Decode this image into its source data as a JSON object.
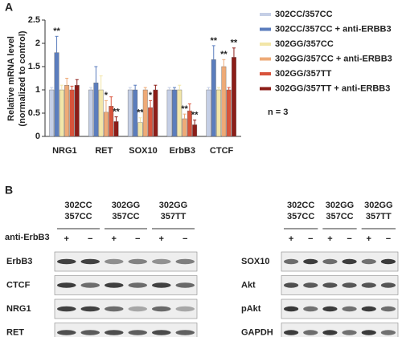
{
  "panel_a": "A",
  "panel_b": "B",
  "chart_data": {
    "type": "bar",
    "y_label": [
      "Relative mRNA level",
      "(normalized to control)"
    ],
    "categories": [
      "NRG1",
      "RET",
      "SOX10",
      "ErbB3",
      "CTCF"
    ],
    "ylim": [
      0,
      2.5
    ],
    "yticks": [
      0,
      0.5,
      1.0,
      1.5,
      2.0,
      2.5
    ],
    "series": [
      {
        "name": "302CC/357CC",
        "color": "#c5cfe6",
        "values": [
          1,
          1,
          1,
          1,
          1
        ],
        "errors": [
          0.05,
          0.05,
          0.05,
          0.05,
          0.05
        ],
        "significance": [
          null,
          null,
          null,
          null,
          null
        ]
      },
      {
        "name": "302CC/357CC + anti-ERBB3",
        "color": "#5b7dbd",
        "values": [
          1.8,
          1.15,
          1.0,
          1.0,
          1.65
        ],
        "errors": [
          0.35,
          0.35,
          0.1,
          0.05,
          0.3
        ],
        "significance": [
          "**",
          null,
          null,
          null,
          "**"
        ]
      },
      {
        "name": "302GG/357CC",
        "color": "#f2e6a8",
        "values": [
          1.0,
          1.0,
          0.3,
          1.0,
          1.0
        ],
        "errors": [
          0.1,
          0.3,
          0.1,
          0.1,
          0.05
        ],
        "significance": [
          null,
          null,
          "**",
          null,
          null
        ]
      },
      {
        "name": "302GG/357CC + anti-ERBB3",
        "color": "#eeaa77",
        "values": [
          1.1,
          0.52,
          1.0,
          0.38,
          1.5
        ],
        "errors": [
          0.15,
          0.25,
          0.05,
          0.1,
          0.15
        ],
        "significance": [
          null,
          "*",
          null,
          "**",
          "**"
        ]
      },
      {
        "name": "302GG/357TT",
        "color": "#d8533b",
        "values": [
          1.0,
          0.65,
          0.62,
          0.55,
          1.0
        ],
        "errors": [
          0.08,
          0.2,
          0.15,
          0.15,
          0.05
        ],
        "significance": [
          null,
          null,
          "*",
          null,
          null
        ]
      },
      {
        "name": "302GG/357TT + anti-ERBB3",
        "color": "#8c1d18",
        "values": [
          1.1,
          0.32,
          1.0,
          0.25,
          1.7
        ],
        "errors": [
          0.12,
          0.1,
          0.1,
          0.1,
          0.2
        ],
        "significance": [
          null,
          "**",
          null,
          "**",
          "**"
        ]
      }
    ],
    "note": "n = 3"
  },
  "blots": {
    "left": {
      "groups": [
        [
          "302CC",
          "357CC"
        ],
        [
          "302GG",
          "357CC"
        ],
        [
          "302GG",
          "357TT"
        ]
      ],
      "treatment": "anti-ErbB3",
      "signs": [
        "+",
        "−"
      ],
      "rows": [
        "ErbB3",
        "CTCF",
        "NRG1",
        "RET"
      ]
    },
    "right": {
      "groups": [
        [
          "302CC",
          "357CC"
        ],
        [
          "302GG",
          "357CC"
        ],
        [
          "302GG",
          "357TT"
        ]
      ],
      "signs": [
        "+",
        "−"
      ],
      "rows": [
        "SOX10",
        "Akt",
        "pAkt",
        "GAPDH"
      ]
    }
  }
}
